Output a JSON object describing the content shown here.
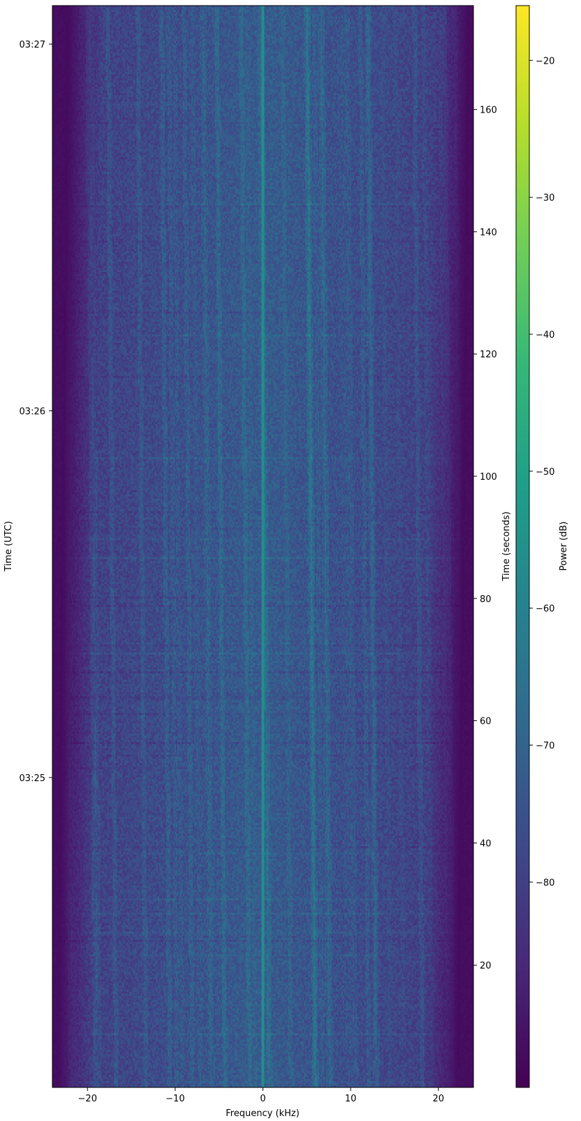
{
  "chart_data": {
    "type": "heatmap",
    "subtype": "spectrogram (waterfall)",
    "title": "",
    "xlabel": "Frequency (kHz)",
    "ylabel_left": "Time (UTC)",
    "ylabel_right": "Time (seconds)",
    "colorbar_label": "Power (dB)",
    "colormap": "viridis",
    "x_range_khz": [
      -24,
      24
    ],
    "x_ticks": [
      -20,
      -10,
      0,
      10,
      20
    ],
    "x_tick_labels": [
      "−20",
      "−10",
      "0",
      "10",
      "20"
    ],
    "time_seconds_range": [
      0,
      177
    ],
    "right_y_ticks": [
      20,
      40,
      60,
      80,
      100,
      120,
      140,
      160
    ],
    "right_y_tick_labels": [
      "20",
      "40",
      "60",
      "80",
      "100",
      "120",
      "140",
      "160"
    ],
    "left_y_tick_labels": [
      "03:25",
      "03:26",
      "03:27"
    ],
    "left_y_ticks_seconds": [
      50.7,
      110.7,
      170.7
    ],
    "colorbar_range_db": [
      -95,
      -16
    ],
    "colorbar_ticks": [
      -20,
      -30,
      -40,
      -50,
      -60,
      -70,
      -80
    ],
    "colorbar_tick_labels": [
      "−20",
      "−30",
      "−40",
      "−50",
      "−60",
      "−70",
      "−80"
    ],
    "signal": {
      "occupied_bandwidth_khz": [
        -22,
        22
      ],
      "center_line_khz": 0,
      "center_line_power_db": -58,
      "in_band_power_db": [
        -80,
        -60
      ],
      "out_of_band_power_db": -93,
      "drift_khz_over_span": 2.5,
      "drift_direction": "edges shift toward higher frequency as time increases",
      "notes": "Broadband noise-like signal with diagonal striations; faint carrier near 0 kHz; dark (no signal) beyond approx ±22 kHz"
    }
  },
  "colors": {
    "viridis": [
      "#440154",
      "#482878",
      "#3e4989",
      "#31688e",
      "#26828e",
      "#1f9e89",
      "#35b779",
      "#6ece58",
      "#b5de2b",
      "#fde725"
    ],
    "axis": "#000000",
    "background": "#ffffff"
  }
}
